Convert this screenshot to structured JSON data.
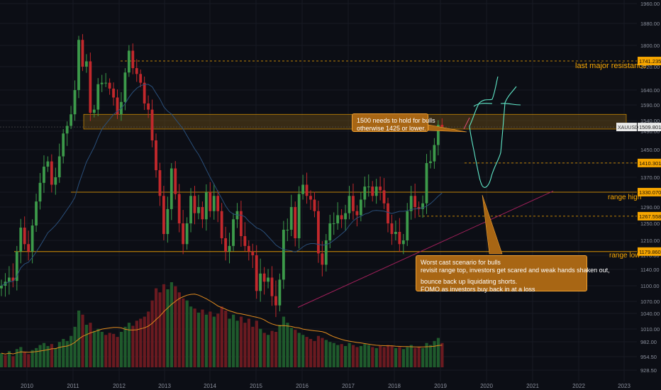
{
  "symbol": "XAUUSD",
  "colors": {
    "background": "#0c0e15",
    "bull": "#3c9a4a",
    "bear": "#c2282c",
    "annotation": "#f7a600",
    "zone": "#5c4416",
    "ma_price": "#2a4f7a",
    "ma_volume": "#e08a1e",
    "trendline": "#a0205a",
    "projection": "#60e8c8"
  },
  "chart_data": {
    "type": "candlestick",
    "timeframe": "monthly",
    "ylim": [
      918,
      1960
    ],
    "x_tick_labels": [
      "2010",
      "2011",
      "2012",
      "2013",
      "2014",
      "2015",
      "2016",
      "2017",
      "2018",
      "2019",
      "2020",
      "2021",
      "2022",
      "2023"
    ],
    "y_tick_labels": [
      1960,
      1880,
      1800,
      1720,
      1640,
      1590,
      1540,
      1490,
      1450,
      1410,
      1370,
      1330,
      1290,
      1250,
      1210,
      1170,
      1140,
      1100,
      1070,
      1040,
      1010,
      982,
      954.5,
      928.5
    ],
    "price_tags": [
      {
        "value": 1741.235,
        "label": "1741.235",
        "style": "level"
      },
      {
        "value": 1509.801,
        "label": "1509.801",
        "style": "current"
      },
      {
        "value": 1410.301,
        "label": "1410.301",
        "style": "level"
      },
      {
        "value": 1330.07,
        "label": "1330.070",
        "style": "level"
      },
      {
        "value": 1267.558,
        "label": "1267.558",
        "style": "level"
      },
      {
        "value": 1179.86,
        "label": "1179.860",
        "style": "level"
      }
    ],
    "resistance_zone": {
      "low": 1500,
      "high": 1560
    },
    "level_labels": [
      {
        "text": "last major resistance",
        "value": 1741.235
      },
      {
        "text": "range high",
        "value": 1330.07
      },
      {
        "text": "range low",
        "value": 1179.86
      }
    ],
    "closes": [
      1100,
      1110,
      1120,
      1112,
      1180,
      1240,
      1200,
      1180,
      1245,
      1305,
      1355,
      1400,
      1415,
      1350,
      1370,
      1430,
      1485,
      1515,
      1560,
      1640,
      1820,
      1720,
      1740,
      1565,
      1575,
      1660,
      1665,
      1665,
      1645,
      1615,
      1560,
      1600,
      1700,
      1780,
      1715,
      1695,
      1665,
      1595,
      1575,
      1470,
      1390,
      1320,
      1225,
      1285,
      1395,
      1325,
      1250,
      1200,
      1250,
      1320,
      1275,
      1290,
      1260,
      1330,
      1280,
      1320,
      1280,
      1215,
      1180,
      1195,
      1260,
      1280,
      1220,
      1195,
      1180,
      1170,
      1090,
      1130,
      1110,
      1120,
      1080,
      1060,
      1115,
      1235,
      1235,
      1290,
      1215,
      1325,
      1350,
      1320,
      1310,
      1280,
      1175,
      1150,
      1210,
      1250,
      1250,
      1270,
      1260,
      1275,
      1320,
      1280,
      1270,
      1310,
      1345,
      1345,
      1320,
      1345,
      1335,
      1300,
      1250,
      1225,
      1230,
      1200,
      1210,
      1280,
      1320,
      1290,
      1285,
      1300,
      1410,
      1415,
      1460,
      1520,
      1510
    ],
    "volumes": [
      {
        "side": "up",
        "value": 70
      },
      {
        "side": "down",
        "value": 60
      },
      {
        "side": "up",
        "value": 80
      },
      {
        "side": "down",
        "value": 55
      },
      {
        "side": "up",
        "value": 90
      },
      {
        "side": "up",
        "value": 100
      },
      {
        "side": "down",
        "value": 75
      },
      {
        "side": "down",
        "value": 65
      },
      {
        "side": "up",
        "value": 85
      },
      {
        "side": "up",
        "value": 95
      },
      {
        "side": "up",
        "value": 110
      },
      {
        "side": "up",
        "value": 120
      },
      {
        "side": "up",
        "value": 105
      },
      {
        "side": "down",
        "value": 115
      },
      {
        "side": "up",
        "value": 95
      },
      {
        "side": "up",
        "value": 125
      },
      {
        "side": "up",
        "value": 140
      },
      {
        "side": "up",
        "value": 130
      },
      {
        "side": "up",
        "value": 155
      },
      {
        "side": "up",
        "value": 200
      },
      {
        "side": "up",
        "value": 280
      },
      {
        "side": "down",
        "value": 260
      },
      {
        "side": "up",
        "value": 210
      },
      {
        "side": "down",
        "value": 220
      },
      {
        "side": "up",
        "value": 180
      },
      {
        "side": "up",
        "value": 190
      },
      {
        "side": "up",
        "value": 175
      },
      {
        "side": "down",
        "value": 160
      },
      {
        "side": "down",
        "value": 170
      },
      {
        "side": "down",
        "value": 165
      },
      {
        "side": "down",
        "value": 150
      },
      {
        "side": "up",
        "value": 175
      },
      {
        "side": "up",
        "value": 200
      },
      {
        "side": "up",
        "value": 220
      },
      {
        "side": "down",
        "value": 205
      },
      {
        "side": "down",
        "value": 230
      },
      {
        "side": "down",
        "value": 240
      },
      {
        "side": "down",
        "value": 250
      },
      {
        "side": "down",
        "value": 275
      },
      {
        "side": "down",
        "value": 330
      },
      {
        "side": "down",
        "value": 390
      },
      {
        "side": "down",
        "value": 370
      },
      {
        "side": "down",
        "value": 410
      },
      {
        "side": "up",
        "value": 385
      },
      {
        "side": "up",
        "value": 420
      },
      {
        "side": "down",
        "value": 400
      },
      {
        "side": "down",
        "value": 370
      },
      {
        "side": "down",
        "value": 340
      },
      {
        "side": "up",
        "value": 330
      },
      {
        "side": "up",
        "value": 300
      },
      {
        "side": "down",
        "value": 290
      },
      {
        "side": "up",
        "value": 270
      },
      {
        "side": "down",
        "value": 285
      },
      {
        "side": "up",
        "value": 260
      },
      {
        "side": "down",
        "value": 275
      },
      {
        "side": "up",
        "value": 250
      },
      {
        "side": "down",
        "value": 265
      },
      {
        "side": "down",
        "value": 300
      },
      {
        "side": "down",
        "value": 280
      },
      {
        "side": "up",
        "value": 240
      },
      {
        "side": "up",
        "value": 260
      },
      {
        "side": "up",
        "value": 230
      },
      {
        "side": "down",
        "value": 250
      },
      {
        "side": "down",
        "value": 220
      },
      {
        "side": "down",
        "value": 240
      },
      {
        "side": "down",
        "value": 200
      },
      {
        "side": "down",
        "value": 230
      },
      {
        "side": "up",
        "value": 190
      },
      {
        "side": "down",
        "value": 170
      },
      {
        "side": "up",
        "value": 160
      },
      {
        "side": "down",
        "value": 180
      },
      {
        "side": "down",
        "value": 175
      },
      {
        "side": "up",
        "value": 210
      },
      {
        "side": "up",
        "value": 250
      },
      {
        "side": "up",
        "value": 220
      },
      {
        "side": "up",
        "value": 195
      },
      {
        "side": "down",
        "value": 185
      },
      {
        "side": "up",
        "value": 170
      },
      {
        "side": "up",
        "value": 160
      },
      {
        "side": "down",
        "value": 150
      },
      {
        "side": "down",
        "value": 140
      },
      {
        "side": "down",
        "value": 130
      },
      {
        "side": "down",
        "value": 155
      },
      {
        "side": "down",
        "value": 145
      },
      {
        "side": "up",
        "value": 135
      },
      {
        "side": "up",
        "value": 125
      },
      {
        "side": "up",
        "value": 120
      },
      {
        "side": "up",
        "value": 110
      },
      {
        "side": "down",
        "value": 115
      },
      {
        "side": "up",
        "value": 105
      },
      {
        "side": "up",
        "value": 120
      },
      {
        "side": "down",
        "value": 110
      },
      {
        "side": "down",
        "value": 100
      },
      {
        "side": "up",
        "value": 105
      },
      {
        "side": "up",
        "value": 115
      },
      {
        "side": "up",
        "value": 110
      },
      {
        "side": "down",
        "value": 100
      },
      {
        "side": "up",
        "value": 95
      },
      {
        "side": "down",
        "value": 105
      },
      {
        "side": "down",
        "value": 100
      },
      {
        "side": "down",
        "value": 110
      },
      {
        "side": "down",
        "value": 105
      },
      {
        "side": "up",
        "value": 95
      },
      {
        "side": "down",
        "value": 100
      },
      {
        "side": "up",
        "value": 90
      },
      {
        "side": "up",
        "value": 100
      },
      {
        "side": "up",
        "value": 110
      },
      {
        "side": "down",
        "value": 95
      },
      {
        "side": "down",
        "value": 100
      },
      {
        "side": "up",
        "value": 95
      },
      {
        "side": "up",
        "value": 120
      },
      {
        "side": "up",
        "value": 110
      },
      {
        "side": "up",
        "value": 130
      },
      {
        "side": "up",
        "value": 145
      },
      {
        "side": "down",
        "value": 120
      }
    ]
  },
  "annotations": {
    "callout_top": {
      "lines": [
        "1500 needs to hold for bulls",
        "otherwise 1425 or lower."
      ]
    },
    "callout_bottom": {
      "lines": [
        "Worst cast scenario for bulls",
        "revisit range top, investors get scared and weak hands shaken out,",
        "",
        "bounce back up liquidating shorts.",
        "FOMO as investors buy back in at a loss"
      ]
    }
  }
}
